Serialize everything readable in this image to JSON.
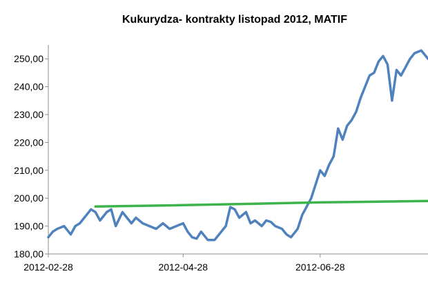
{
  "chart_data": {
    "type": "line",
    "title": "Kukurydza- kontrakty listopad 2012, MATIF",
    "xlabel": "",
    "ylabel": "",
    "ylim": [
      180,
      255
    ],
    "y_ticks": [
      "180,00",
      "190,00",
      "200,00",
      "210,00",
      "220,00",
      "230,00",
      "240,00",
      "250,00"
    ],
    "y_tick_values": [
      180,
      190,
      200,
      210,
      220,
      230,
      240,
      250
    ],
    "x_range": [
      "2012-02-28",
      "2012-08-15"
    ],
    "x_ticks": [
      "2012-02-28",
      "2012-04-28",
      "2012-06-28"
    ],
    "grid": false,
    "legend": "none",
    "series": [
      {
        "color": "#4F81BD",
        "x": [
          "2012-02-28",
          "2012-03-01",
          "2012-03-03",
          "2012-03-06",
          "2012-03-09",
          "2012-03-11",
          "2012-03-13",
          "2012-03-15",
          "2012-03-18",
          "2012-03-20",
          "2012-03-22",
          "2012-03-25",
          "2012-03-27",
          "2012-03-29",
          "2012-04-01",
          "2012-04-03",
          "2012-04-05",
          "2012-04-07",
          "2012-04-10",
          "2012-04-13",
          "2012-04-16",
          "2012-04-19",
          "2012-04-22",
          "2012-04-25",
          "2012-04-28",
          "2012-04-30",
          "2012-05-02",
          "2012-05-04",
          "2012-05-06",
          "2012-05-09",
          "2012-05-12",
          "2012-05-15",
          "2012-05-17",
          "2012-05-19",
          "2012-05-21",
          "2012-05-23",
          "2012-05-26",
          "2012-05-28",
          "2012-05-30",
          "2012-06-02",
          "2012-06-04",
          "2012-06-06",
          "2012-06-08",
          "2012-06-11",
          "2012-06-13",
          "2012-06-15",
          "2012-06-18",
          "2012-06-20",
          "2012-06-22",
          "2012-06-24",
          "2012-06-26",
          "2012-06-28",
          "2012-06-30",
          "2012-07-02",
          "2012-07-04",
          "2012-07-06",
          "2012-07-08",
          "2012-07-10",
          "2012-07-12",
          "2012-07-14",
          "2012-07-16",
          "2012-07-18",
          "2012-07-20",
          "2012-07-22",
          "2012-07-24",
          "2012-07-26",
          "2012-07-28",
          "2012-07-30",
          "2012-08-01",
          "2012-08-03",
          "2012-08-05",
          "2012-08-07",
          "2012-08-09",
          "2012-08-12",
          "2012-08-15"
        ],
        "values": [
          186.0,
          188.0,
          189.0,
          190.0,
          187.0,
          190.0,
          191.0,
          193.0,
          196.0,
          195.0,
          192.0,
          195.0,
          196.0,
          190.0,
          195.0,
          193.0,
          191.0,
          193.0,
          191.0,
          190.0,
          189.0,
          191.0,
          189.0,
          190.0,
          191.0,
          188.0,
          186.0,
          185.5,
          188.0,
          185.0,
          185.0,
          188.0,
          190.0,
          196.8,
          196.0,
          193.0,
          195.0,
          191.0,
          192.0,
          190.0,
          192.0,
          191.5,
          190.0,
          189.0,
          187.0,
          186.0,
          189.0,
          194.0,
          197.0,
          200.0,
          205.0,
          210.0,
          208.0,
          212.0,
          215.0,
          225.0,
          221.0,
          226.0,
          228.0,
          231.0,
          236.0,
          240.0,
          244.0,
          245.0,
          249.0,
          251.0,
          248.0,
          235.0,
          246.0,
          244.0,
          247.0,
          250.0,
          252.0,
          253.0,
          250.0
        ]
      },
      {
        "color": "#3CB44B",
        "x": [
          "2012-03-20",
          "2012-04-28",
          "2012-06-28",
          "2012-08-15"
        ],
        "values": [
          197.0,
          197.5,
          198.5,
          199.0
        ]
      }
    ]
  }
}
